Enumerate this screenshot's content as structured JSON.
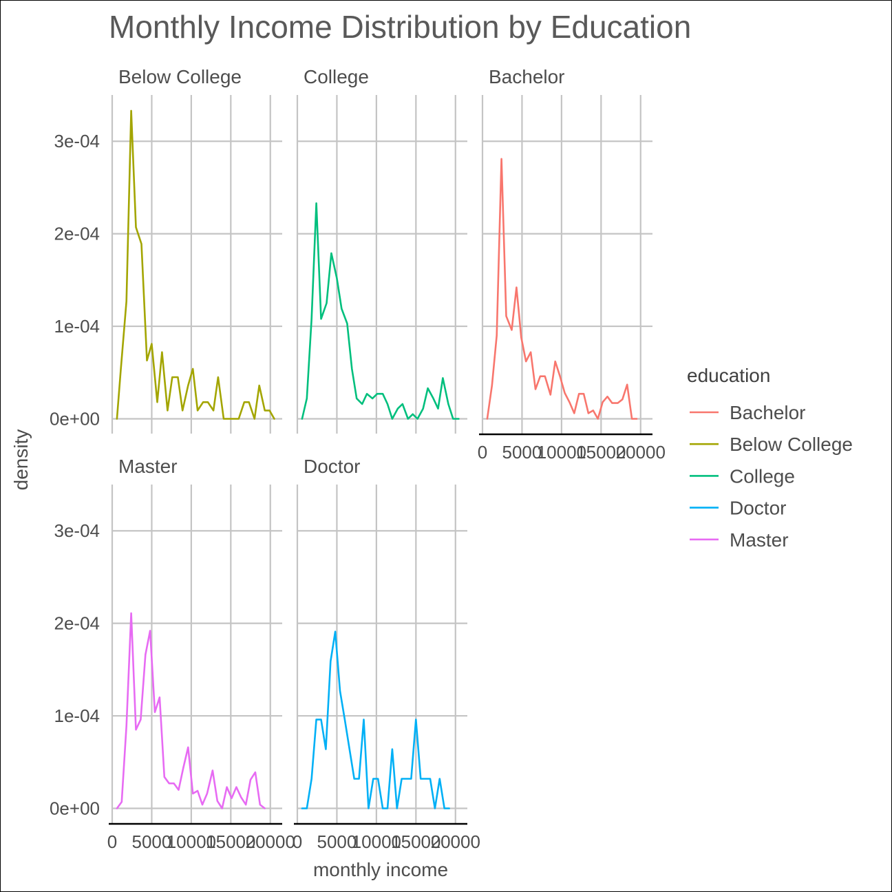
{
  "chart_data": {
    "type": "line",
    "title": "Monthly Income Distribution by Education",
    "xlabel": "monthly income",
    "ylabel": "density",
    "xlim": [
      0,
      21500
    ],
    "ylim": [
      -1.6e-05,
      0.00035
    ],
    "x_ticks": [
      0,
      5000,
      10000,
      15000,
      20000
    ],
    "x_tick_labels": [
      "0",
      "5000",
      "10000",
      "15000",
      "20000"
    ],
    "y_ticks": [
      0,
      0.0001,
      0.0002,
      0.0003
    ],
    "y_tick_labels": [
      "0e+00",
      "1e-04",
      "2e-04",
      "3e-04"
    ],
    "grid": true,
    "legend": {
      "title": "education",
      "position": "right",
      "entries": [
        {
          "name": "Bachelor",
          "color": "#F8766D"
        },
        {
          "name": "Below College",
          "color": "#A3A500"
        },
        {
          "name": "College",
          "color": "#00BF7D"
        },
        {
          "name": "Doctor",
          "color": "#00B0F6"
        },
        {
          "name": "Master",
          "color": "#E76BF3"
        }
      ]
    },
    "facets": [
      {
        "name": "Below College",
        "color": "#A3A500",
        "points": [
          [
            600,
            0
          ],
          [
            1100,
            5.4e-05
          ],
          [
            1800,
            0.000127
          ],
          [
            2400,
            0.000333
          ],
          [
            3000,
            0.000207
          ],
          [
            3700,
            0.000189
          ],
          [
            4400,
            6.3e-05
          ],
          [
            5000,
            8.1e-05
          ],
          [
            5700,
            1.8e-05
          ],
          [
            6300,
            7.2e-05
          ],
          [
            7000,
            9e-06
          ],
          [
            7600,
            4.5e-05
          ],
          [
            8300,
            4.5e-05
          ],
          [
            8900,
            9e-06
          ],
          [
            9600,
            3.6e-05
          ],
          [
            10200,
            5.4e-05
          ],
          [
            10800,
            9e-06
          ],
          [
            11500,
            1.8e-05
          ],
          [
            12100,
            1.8e-05
          ],
          [
            12800,
            9e-06
          ],
          [
            13400,
            4.5e-05
          ],
          [
            14100,
            0
          ],
          [
            14700,
            0
          ],
          [
            15400,
            0
          ],
          [
            16000,
            0
          ],
          [
            16700,
            1.8e-05
          ],
          [
            17300,
            1.8e-05
          ],
          [
            18000,
            0
          ],
          [
            18600,
            3.6e-05
          ],
          [
            19300,
            9e-06
          ],
          [
            19900,
            9e-06
          ],
          [
            20500,
            0
          ]
        ]
      },
      {
        "name": "College",
        "color": "#00BF7D",
        "points": [
          [
            600,
            0
          ],
          [
            1200,
            2.2e-05
          ],
          [
            1800,
            0.000108
          ],
          [
            2400,
            0.000233
          ],
          [
            3000,
            0.000108
          ],
          [
            3700,
            0.000125
          ],
          [
            4300,
            0.000179
          ],
          [
            5000,
            0.000152
          ],
          [
            5600,
            0.000119
          ],
          [
            6300,
            0.000103
          ],
          [
            6900,
            5.4e-05
          ],
          [
            7500,
            2.2e-05
          ],
          [
            8200,
            1.6e-05
          ],
          [
            8800,
            2.7e-05
          ],
          [
            9500,
            2.2e-05
          ],
          [
            10100,
            2.7e-05
          ],
          [
            10800,
            2.7e-05
          ],
          [
            11400,
            1.6e-05
          ],
          [
            12000,
            0
          ],
          [
            12700,
            1.1e-05
          ],
          [
            13300,
            1.6e-05
          ],
          [
            14000,
            0
          ],
          [
            14600,
            5e-06
          ],
          [
            15200,
            0
          ],
          [
            15900,
            1.1e-05
          ],
          [
            16500,
            3.3e-05
          ],
          [
            17200,
            2.2e-05
          ],
          [
            17800,
            1.1e-05
          ],
          [
            18400,
            4.4e-05
          ],
          [
            19100,
            1.6e-05
          ],
          [
            19700,
            0
          ],
          [
            20400,
            0
          ]
        ]
      },
      {
        "name": "Bachelor",
        "color": "#F8766D",
        "points": [
          [
            600,
            0
          ],
          [
            1200,
            3.6e-05
          ],
          [
            1800,
            9e-05
          ],
          [
            2400,
            0.000281
          ],
          [
            3000,
            0.000111
          ],
          [
            3700,
            9.6e-05
          ],
          [
            4300,
            0.000142
          ],
          [
            4900,
            8.8e-05
          ],
          [
            5500,
            6.2e-05
          ],
          [
            6100,
            7.2e-05
          ],
          [
            6700,
            3.2e-05
          ],
          [
            7300,
            4.6e-05
          ],
          [
            7900,
            4.6e-05
          ],
          [
            8600,
            2.6e-05
          ],
          [
            9200,
            6.2e-05
          ],
          [
            9800,
            4.6e-05
          ],
          [
            10400,
            2.8e-05
          ],
          [
            11000,
            1.8e-05
          ],
          [
            11600,
            6e-06
          ],
          [
            12200,
            2.7e-05
          ],
          [
            12800,
            2.7e-05
          ],
          [
            13400,
            6e-06
          ],
          [
            14000,
            9e-06
          ],
          [
            14600,
            0
          ],
          [
            15200,
            1.8e-05
          ],
          [
            15800,
            2.4e-05
          ],
          [
            16400,
            1.7e-05
          ],
          [
            17100,
            1.7e-05
          ],
          [
            17700,
            2.1e-05
          ],
          [
            18300,
            3.7e-05
          ],
          [
            18900,
            0
          ],
          [
            19500,
            0
          ]
        ]
      },
      {
        "name": "Master",
        "color": "#E76BF3",
        "points": [
          [
            600,
            0
          ],
          [
            1200,
            7e-06
          ],
          [
            1800,
            8.9e-05
          ],
          [
            2400,
            0.000211
          ],
          [
            3000,
            8.5e-05
          ],
          [
            3600,
            9.6e-05
          ],
          [
            4200,
            0.000166
          ],
          [
            4800,
            0.000192
          ],
          [
            5400,
            0.000104
          ],
          [
            6000,
            0.00012
          ],
          [
            6600,
            3.4e-05
          ],
          [
            7200,
            2.7e-05
          ],
          [
            7800,
            2.7e-05
          ],
          [
            8400,
            2e-05
          ],
          [
            9000,
            4.4e-05
          ],
          [
            9600,
            6.6e-05
          ],
          [
            10200,
            1.6e-05
          ],
          [
            10800,
            1.9e-05
          ],
          [
            11400,
            4e-06
          ],
          [
            12000,
            1.6e-05
          ],
          [
            12700,
            4.1e-05
          ],
          [
            13300,
            8e-06
          ],
          [
            13900,
            0
          ],
          [
            14500,
            2.3e-05
          ],
          [
            15100,
            1.1e-05
          ],
          [
            15700,
            2.3e-05
          ],
          [
            16300,
            1.2e-05
          ],
          [
            16900,
            4e-06
          ],
          [
            17500,
            3.1e-05
          ],
          [
            18100,
            3.9e-05
          ],
          [
            18700,
            4e-06
          ],
          [
            19300,
            0
          ]
        ]
      },
      {
        "name": "Doctor",
        "color": "#00B0F6",
        "points": [
          [
            600,
            0
          ],
          [
            1200,
            0
          ],
          [
            1800,
            3.2e-05
          ],
          [
            2400,
            9.6e-05
          ],
          [
            3000,
            9.6e-05
          ],
          [
            3600,
            6.4e-05
          ],
          [
            4200,
            0.000159
          ],
          [
            4800,
            0.000191
          ],
          [
            5400,
            0.000127
          ],
          [
            6000,
            9.6e-05
          ],
          [
            6600,
            6.4e-05
          ],
          [
            7200,
            3.2e-05
          ],
          [
            7800,
            3.2e-05
          ],
          [
            8400,
            9.6e-05
          ],
          [
            9000,
            0
          ],
          [
            9600,
            3.2e-05
          ],
          [
            10200,
            3.2e-05
          ],
          [
            10800,
            0
          ],
          [
            11400,
            0
          ],
          [
            12000,
            6.4e-05
          ],
          [
            12600,
            0
          ],
          [
            13200,
            3.2e-05
          ],
          [
            13800,
            3.2e-05
          ],
          [
            14400,
            3.2e-05
          ],
          [
            15000,
            9.6e-05
          ],
          [
            15600,
            3.2e-05
          ],
          [
            16200,
            3.2e-05
          ],
          [
            16800,
            3.2e-05
          ],
          [
            17400,
            0
          ],
          [
            18000,
            3.2e-05
          ],
          [
            18600,
            0
          ],
          [
            19200,
            0
          ]
        ]
      }
    ]
  }
}
